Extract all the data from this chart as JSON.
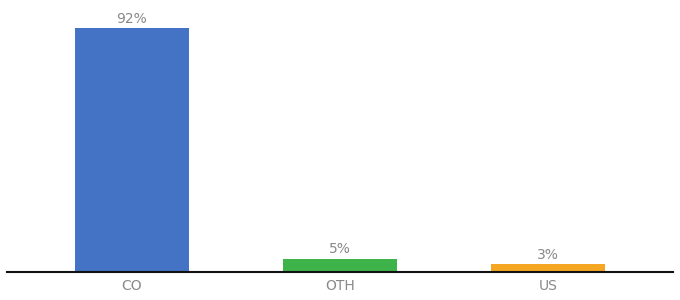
{
  "categories": [
    "CO",
    "OTH",
    "US"
  ],
  "values": [
    92,
    5,
    3
  ],
  "labels": [
    "92%",
    "5%",
    "3%"
  ],
  "bar_colors": [
    "#4472c4",
    "#3db34a",
    "#f5a623"
  ],
  "background_color": "#ffffff",
  "ylim": [
    0,
    100
  ],
  "label_fontsize": 10,
  "tick_fontsize": 10,
  "bar_width": 0.55,
  "x_positions": [
    0,
    1,
    2
  ]
}
